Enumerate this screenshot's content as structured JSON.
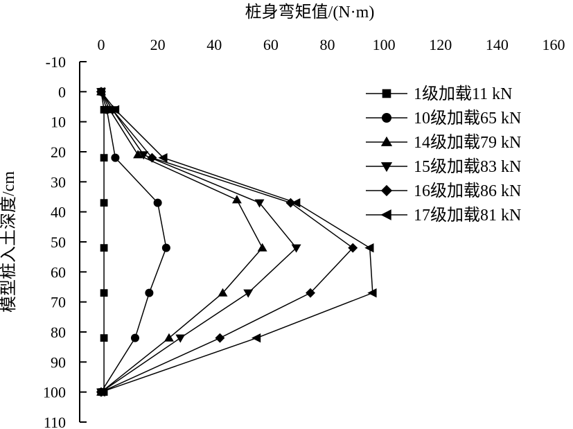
{
  "chart_data": {
    "type": "line",
    "title": "",
    "xlabel": "桩身弯矩值/(N·m)",
    "ylabel": "模型桩入土深度/cm",
    "xlim": [
      0,
      160
    ],
    "ylim": [
      -10,
      110
    ],
    "x_ticks": [
      0,
      20,
      40,
      60,
      80,
      100,
      120,
      140,
      160
    ],
    "y_ticks": [
      -10,
      0,
      10,
      20,
      30,
      40,
      50,
      60,
      70,
      80,
      90,
      100,
      110
    ],
    "x_axis_position": "top",
    "y_inverted": true,
    "grid": false,
    "legend_position": "right",
    "series": [
      {
        "name": "1级加载11 kN",
        "marker": "square",
        "x": [
          0,
          1,
          1,
          1,
          1,
          1,
          1,
          1,
          0
        ],
        "y": [
          0,
          6,
          22,
          37,
          52,
          67,
          82,
          100,
          100
        ]
      },
      {
        "name": "10级加载65 kN",
        "marker": "circle",
        "x": [
          0,
          2,
          5,
          20,
          23,
          17,
          12,
          0
        ],
        "y": [
          0,
          6,
          22,
          37,
          52,
          67,
          82,
          100
        ]
      },
      {
        "name": "14级加载79 kN",
        "marker": "triangle-up",
        "x": [
          0,
          3,
          13,
          48,
          57,
          43,
          24,
          0
        ],
        "y": [
          0,
          6,
          21,
          36,
          52,
          67,
          82,
          100
        ]
      },
      {
        "name": "15级加载83 kN",
        "marker": "triangle-down",
        "x": [
          0,
          4,
          15,
          56,
          69,
          52,
          28,
          0
        ],
        "y": [
          0,
          6,
          21,
          37,
          52,
          67,
          82,
          100
        ]
      },
      {
        "name": "16级加载86 kN",
        "marker": "diamond",
        "x": [
          0,
          4,
          18,
          67,
          89,
          74,
          42,
          0
        ],
        "y": [
          0,
          6,
          22,
          37,
          52,
          67,
          82,
          100
        ]
      },
      {
        "name": "17级加载81 kN",
        "marker": "triangle-left",
        "x": [
          0,
          5,
          22,
          69,
          95,
          96,
          55,
          0
        ],
        "y": [
          0,
          6,
          22,
          37,
          52,
          67,
          82,
          100
        ]
      }
    ]
  }
}
